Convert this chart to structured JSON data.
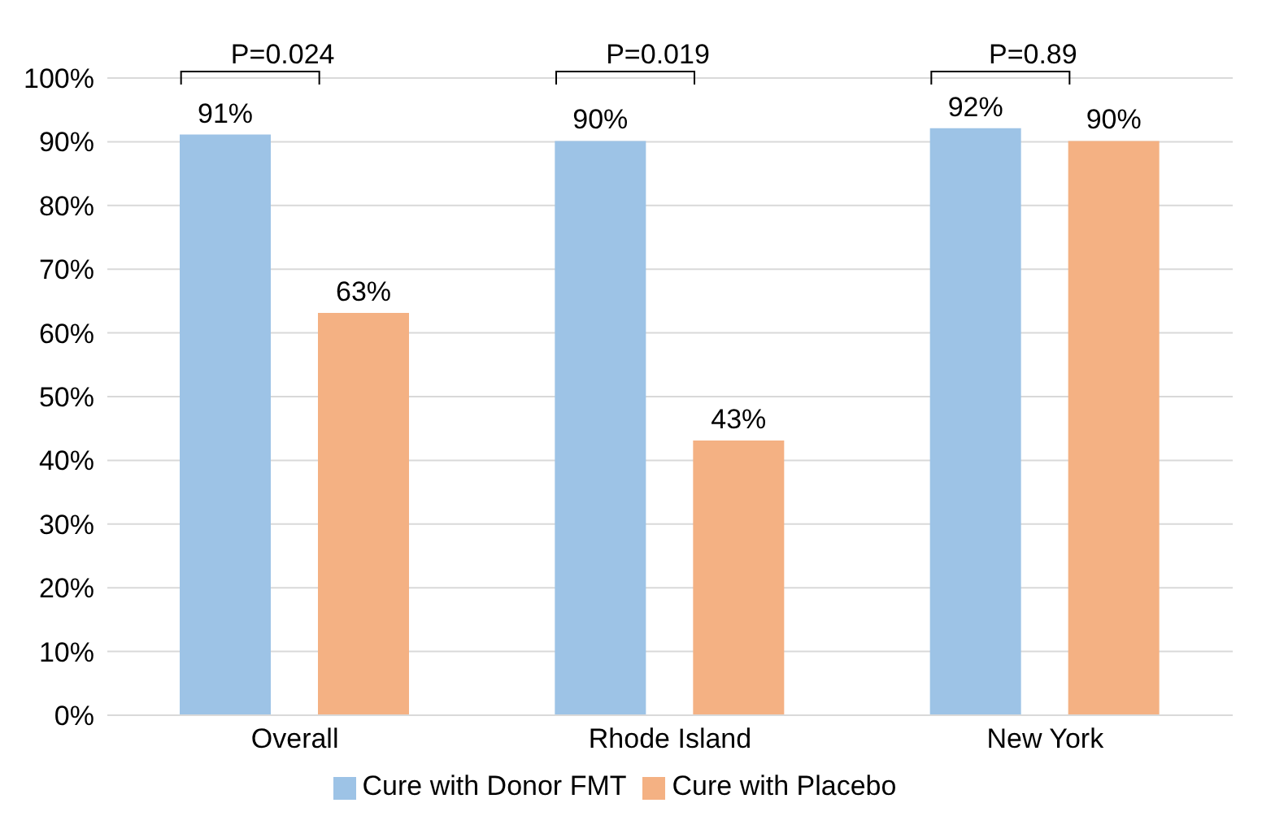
{
  "chart_data": {
    "type": "bar",
    "categories": [
      "Overall",
      "Rhode Island",
      "New York"
    ],
    "series": [
      {
        "name": "Cure with Donor FMT",
        "color": "#9dc3e6",
        "values": [
          91,
          90,
          92
        ],
        "value_labels": [
          "91%",
          "90%",
          "92%"
        ]
      },
      {
        "name": "Cure with Placebo",
        "color": "#f4b183",
        "values": [
          63,
          43,
          90
        ],
        "value_labels": [
          "63%",
          "43%",
          "90%"
        ]
      }
    ],
    "ylim": [
      0,
      100
    ],
    "yticks": [
      {
        "value": 0,
        "label": "0%"
      },
      {
        "value": 10,
        "label": "10%"
      },
      {
        "value": 20,
        "label": "20%"
      },
      {
        "value": 30,
        "label": "30%"
      },
      {
        "value": 40,
        "label": "40%"
      },
      {
        "value": 50,
        "label": "50%"
      },
      {
        "value": 60,
        "label": "60%"
      },
      {
        "value": 70,
        "label": "70%"
      },
      {
        "value": 80,
        "label": "80%"
      },
      {
        "value": 90,
        "label": "90%"
      },
      {
        "value": 100,
        "label": "100%"
      }
    ],
    "grid": "y",
    "legend": "bottom",
    "annotations": [
      "P=0.024",
      "P=0.019",
      "P=0.89"
    ]
  }
}
